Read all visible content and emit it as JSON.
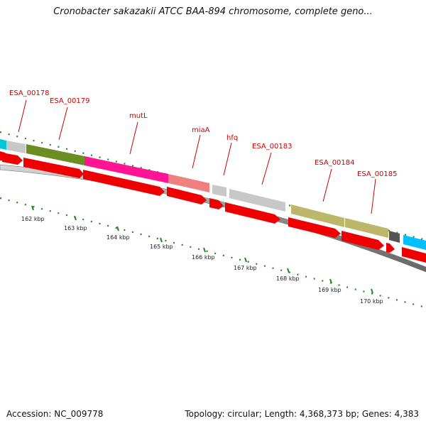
{
  "header": {
    "title": "Cronobacter sakazakii ATCC BAA-894 chromosome, complete geno..."
  },
  "footer": {
    "accession": "Accession: NC_009778",
    "summary": "Topology: circular; Length: 4,368,373 bp; Genes: 4,383"
  },
  "gene_labels": [
    "ESA_00178",
    "ESA_00179",
    "mutL",
    "miaA",
    "hfq",
    "ESA_00183",
    "ESA_00184",
    "ESA_00185"
  ],
  "kbp_labels": [
    "162 kbp",
    "163 kbp",
    "164 kbp",
    "165 kbp",
    "166 kbp",
    "167 kbp",
    "168 kbp",
    "169 kbp",
    "170 kbp"
  ],
  "colors": {
    "label_red": "#cc0000",
    "tick_green": "#228822",
    "cds_red": "#ee0000",
    "backbone_gray": "#888888",
    "feature_colors": [
      "#00c8d8",
      "#c8c8c8",
      "#6b8e23",
      "#ff1493",
      "#f08080",
      "#c8c8c8",
      "#c8c8c8",
      "#bdb76b",
      "#bdb76b",
      "#555555",
      "#00bfff"
    ]
  }
}
